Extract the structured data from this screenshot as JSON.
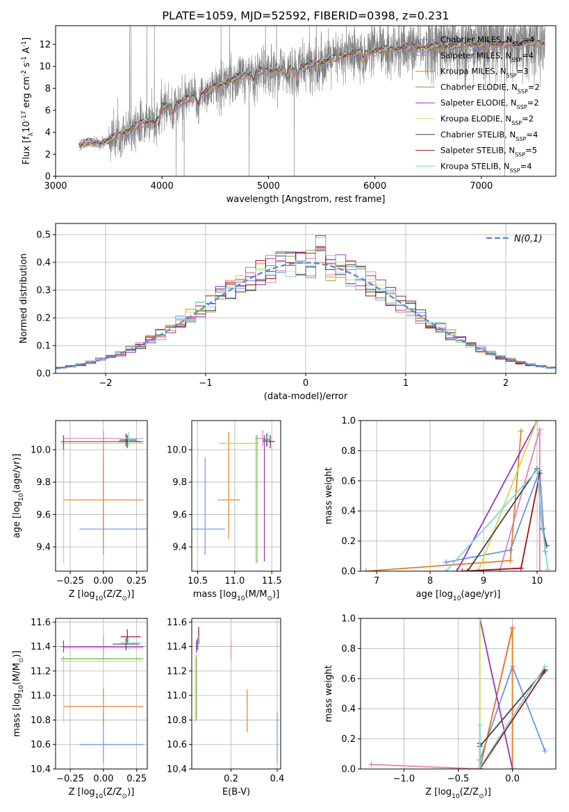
{
  "figure": {
    "title": "PLATE=1059, MJD=52592, FIBERID=0398, z=0.231"
  },
  "models": [
    {
      "name": "Chabrier MILES",
      "nssp": "4",
      "color": "#6495ed"
    },
    {
      "name": "Salpeter MILES",
      "nssp": "4",
      "color": "#e680b3"
    },
    {
      "name": "Kroupa MILES",
      "nssp": "3",
      "color": "#e67e22"
    },
    {
      "name": "Chabrier ELODIE",
      "nssp": "2",
      "color": "#6aa84f"
    },
    {
      "name": "Salpeter ELODIE",
      "nssp": "2",
      "color": "#9b30c0"
    },
    {
      "name": "Kroupa ELODIE",
      "nssp": "2",
      "color": "#d4e157"
    },
    {
      "name": "Chabrier STELIB",
      "nssp": "4",
      "color": "#444444"
    },
    {
      "name": "Salpeter STELIB",
      "nssp": "5",
      "color": "#a50f15"
    },
    {
      "name": "Kroupa STELIB",
      "nssp": "4",
      "color": "#7fd4d9"
    }
  ],
  "chart_data": [
    {
      "id": "spectrum",
      "type": "line",
      "xlabel": "wavelength [Angstrom, rest frame]",
      "ylabel": "Flux [f$_\\lambda$10$^{-17}$ erg cm$^{-2}$ s$^{-1}$ A$^{-1}$]",
      "xlim": [
        3000,
        7700
      ],
      "ylim": [
        0,
        13.7
      ],
      "xticks": [
        3000,
        4000,
        5000,
        6000,
        7000
      ],
      "yticks": [
        0,
        2,
        4,
        6,
        8,
        10,
        12
      ],
      "legend": "upper-right",
      "data_color": "#808080",
      "continuum": {
        "x": [
          3220,
          3300,
          3400,
          3500,
          3600,
          3700,
          3800,
          3900,
          4000,
          4200,
          4400,
          4600,
          4800,
          5000,
          5200,
          5400,
          5600,
          5800,
          6000,
          6200,
          6400,
          6600,
          6800,
          7000,
          7200,
          7400
        ],
        "y": [
          2.8,
          3.1,
          3.0,
          3.2,
          3.8,
          4.2,
          4.8,
          5.0,
          6.2,
          6.8,
          7.6,
          8.5,
          9.3,
          9.6,
          9.7,
          10.1,
          10.6,
          11.2,
          11.4,
          11.6,
          11.7,
          11.8,
          11.9,
          12.0,
          12.0,
          12.1
        ]
      }
    },
    {
      "id": "residuals",
      "type": "step",
      "xlabel": "(data-model)/error",
      "ylabel": "Normed distribution",
      "xlim": [
        -2.5,
        2.5
      ],
      "ylim": [
        0,
        0.54
      ],
      "xticks": [
        -2,
        -1,
        0,
        1,
        2
      ],
      "yticks": [
        0.0,
        0.1,
        0.2,
        0.3,
        0.4,
        0.5
      ],
      "legend_label": "$\\mathcal{N}(0,1)$",
      "legend": "upper-right",
      "gauss_color": "#5b8bd9"
    },
    {
      "id": "age_vs_Z",
      "type": "errorbar",
      "xlabel": "Z [log$_{10}$(Z/Z$_\\odot$)]",
      "ylabel": "age  [log$_{10}$(age/yr)]",
      "xlim": [
        -0.36,
        0.33
      ],
      "ylim": [
        9.25,
        10.18
      ],
      "xticks": [
        -0.25,
        0.0,
        0.25
      ],
      "yticks": [
        9.4,
        9.6,
        9.8,
        10.0
      ],
      "points": [
        {
          "m": 0,
          "x": 0.0,
          "y": 9.51,
          "xerr": [
            0.18,
            0.37
          ],
          "yerr": [
            0.16,
            0.44
          ]
        },
        {
          "m": 2,
          "x": 0.0,
          "y": 9.69,
          "xerr": [
            0.3,
            0.3
          ],
          "yerr": [
            0.24,
            0.42
          ]
        },
        {
          "m": 1,
          "x": 0.0,
          "y": 10.07,
          "xerr": [
            0.3,
            0.3
          ],
          "yerr": [
            0.05,
            0.05
          ]
        },
        {
          "m": 3,
          "x": -0.3,
          "y": 10.04,
          "xerr": [
            0.02,
            0.6
          ],
          "yerr": [
            0.74,
            0.05
          ]
        },
        {
          "m": 5,
          "x": -0.3,
          "y": 10.04,
          "xerr": [
            0.02,
            0.6
          ],
          "yerr": [
            0.74,
            0.05
          ]
        },
        {
          "m": 4,
          "x": -0.3,
          "y": 10.05,
          "xerr": [
            0.02,
            0.6
          ],
          "yerr": [
            0.05,
            0.04
          ]
        },
        {
          "m": 6,
          "x": 0.17,
          "y": 10.06,
          "xerr": [
            0.05,
            0.08
          ],
          "yerr": [
            0.04,
            0.04
          ]
        },
        {
          "m": 7,
          "x": 0.18,
          "y": 10.05,
          "xerr": [
            0.07,
            0.1
          ],
          "yerr": [
            0.04,
            0.04
          ]
        },
        {
          "m": 8,
          "x": 0.19,
          "y": 10.07,
          "xerr": [
            0.06,
            0.1
          ],
          "yerr": [
            0.05,
            0.04
          ]
        }
      ]
    },
    {
      "id": "age_vs_mass",
      "type": "errorbar",
      "xlabel": "mass [log$_{10}$(M/M$_\\odot$)]",
      "ylabel": "",
      "xlim": [
        10.42,
        11.62
      ],
      "ylim": [
        9.25,
        10.18
      ],
      "xticks": [
        10.5,
        11.0,
        11.5
      ],
      "yticks": [
        9.4,
        9.6,
        9.8,
        10.0
      ],
      "points": [
        {
          "m": 0,
          "x": 10.6,
          "y": 9.51,
          "xerr": [
            0.18,
            0.27
          ],
          "yerr": [
            0.16,
            0.44
          ]
        },
        {
          "m": 2,
          "x": 10.92,
          "y": 9.69,
          "xerr": [
            0.15,
            0.15
          ],
          "yerr": [
            0.24,
            0.42
          ]
        },
        {
          "m": 1,
          "x": 11.38,
          "y": 10.07,
          "xerr": [
            0.1,
            0.1
          ],
          "yerr": [
            0.05,
            0.05
          ]
        },
        {
          "m": 3,
          "x": 11.3,
          "y": 10.04,
          "xerr": [
            0.5,
            0.02
          ],
          "yerr": [
            0.74,
            0.05
          ]
        },
        {
          "m": 5,
          "x": 11.28,
          "y": 10.04,
          "xerr": [
            0.5,
            0.02
          ],
          "yerr": [
            0.74,
            0.05
          ]
        },
        {
          "m": 4,
          "x": 11.4,
          "y": 10.05,
          "xerr": [
            0.02,
            0.02
          ],
          "yerr": [
            0.74,
            0.04
          ]
        },
        {
          "m": 6,
          "x": 11.43,
          "y": 10.06,
          "xerr": [
            0.05,
            0.05
          ],
          "yerr": [
            0.04,
            0.04
          ]
        },
        {
          "m": 7,
          "x": 11.48,
          "y": 10.05,
          "xerr": [
            0.05,
            0.06
          ],
          "yerr": [
            0.04,
            0.04
          ]
        },
        {
          "m": 8,
          "x": 11.45,
          "y": 10.07,
          "xerr": [
            0.04,
            0.05
          ],
          "yerr": [
            0.05,
            0.04
          ]
        }
      ]
    },
    {
      "id": "weight_vs_age",
      "type": "line",
      "xlabel": "age  [log$_{10}$(age/yr)]",
      "ylabel": "mass weight",
      "xlim": [
        6.7,
        10.35
      ],
      "ylim": [
        0,
        1.0
      ],
      "xticks": [
        7,
        8,
        9,
        10
      ],
      "yticks": [
        0.0,
        0.2,
        0.4,
        0.6,
        0.8,
        1.0
      ],
      "series": [
        {
          "m": 0,
          "x": [
            8.3,
            9.5,
            10.05,
            10.15
          ],
          "y": [
            0.06,
            0.14,
            0.67,
            0.13
          ]
        },
        {
          "m": 1,
          "x": [
            9.3,
            10.05,
            10.05
          ],
          "y": [
            0.0,
            0.94,
            0.0
          ]
        },
        {
          "m": 2,
          "x": [
            6.8,
            9.5,
            9.7
          ],
          "y": [
            0.0,
            0.07,
            0.93
          ]
        },
        {
          "m": 3,
          "x": [
            8.9,
            10.0
          ],
          "y": [
            0.0,
            1.0
          ]
        },
        {
          "m": 4,
          "x": [
            8.5,
            10.0
          ],
          "y": [
            0.0,
            1.0
          ]
        },
        {
          "m": 5,
          "x": [
            8.9,
            10.0
          ],
          "y": [
            0.0,
            1.0
          ]
        },
        {
          "m": 6,
          "x": [
            8.7,
            10.0,
            10.1,
            10.18
          ],
          "y": [
            0.0,
            0.68,
            0.28,
            0.17
          ]
        },
        {
          "m": 7,
          "x": [
            8.6,
            9.7,
            10.05
          ],
          "y": [
            0.0,
            0.02,
            0.65
          ]
        },
        {
          "m": 8,
          "x": [
            8.3,
            10.0,
            10.1,
            10.2
          ],
          "y": [
            0.0,
            0.67,
            0.29,
            0.01
          ]
        }
      ]
    },
    {
      "id": "mass_vs_Z",
      "type": "errorbar",
      "xlabel": "Z [log$_{10}$(Z/Z$_\\odot$)]",
      "ylabel": "mass [log$_{10}$(M/M$_\\odot$)]",
      "xlim": [
        -0.36,
        0.33
      ],
      "ylim": [
        10.4,
        11.63
      ],
      "xticks": [
        -0.25,
        0.0,
        0.25
      ],
      "yticks": [
        10.4,
        10.6,
        10.8,
        11.0,
        11.2,
        11.4,
        11.6
      ],
      "points": [
        {
          "m": 0,
          "x": 0.0,
          "y": 10.6,
          "xerr": [
            0.18,
            0.3
          ],
          "yerr": [
            0.15,
            0.26
          ]
        },
        {
          "m": 2,
          "x": 0.0,
          "y": 10.91,
          "xerr": [
            0.3,
            0.3
          ],
          "yerr": [
            0.15,
            0.15
          ]
        },
        {
          "m": 1,
          "x": 0.0,
          "y": 11.39,
          "xerr": [
            0.3,
            0.3
          ],
          "yerr": [
            0.1,
            0.1
          ]
        },
        {
          "m": 3,
          "x": -0.3,
          "y": 11.3,
          "xerr": [
            0.02,
            0.6
          ],
          "yerr": [
            0.5,
            0.02
          ]
        },
        {
          "m": 5,
          "x": -0.3,
          "y": 11.28,
          "xerr": [
            0.02,
            0.6
          ],
          "yerr": [
            0.5,
            0.02
          ]
        },
        {
          "m": 4,
          "x": -0.3,
          "y": 11.4,
          "xerr": [
            0.02,
            0.6
          ],
          "yerr": [
            0.05,
            0.05
          ]
        },
        {
          "m": 6,
          "x": 0.17,
          "y": 11.42,
          "xerr": [
            0.1,
            0.1
          ],
          "yerr": [
            0.05,
            0.05
          ]
        },
        {
          "m": 7,
          "x": 0.18,
          "y": 11.48,
          "xerr": [
            0.05,
            0.1
          ],
          "yerr": [
            0.06,
            0.06
          ]
        },
        {
          "m": 8,
          "x": 0.19,
          "y": 11.43,
          "xerr": [
            0.06,
            0.1
          ],
          "yerr": [
            0.05,
            0.05
          ]
        }
      ]
    },
    {
      "id": "mass_vs_ebv",
      "type": "errorbar",
      "xlabel": "E(B-V)",
      "ylabel": "",
      "xlim": [
        0.03,
        0.415
      ],
      "ylim": [
        10.4,
        11.63
      ],
      "xticks": [
        0.2,
        0.4
      ],
      "yticks": [
        10.4,
        10.6,
        10.8,
        11.0,
        11.2,
        11.4,
        11.6
      ],
      "points": [
        {
          "m": 0,
          "x": 0.4,
          "y": 10.6,
          "xerr": [
            0.0,
            0.0
          ],
          "yerr": [
            0.15,
            0.26
          ]
        },
        {
          "m": 2,
          "x": 0.27,
          "y": 10.91,
          "xerr": [
            0.0,
            0.0
          ],
          "yerr": [
            0.21,
            0.14
          ]
        },
        {
          "m": 1,
          "x": 0.2,
          "y": 11.39,
          "xerr": [
            0.0,
            0.0
          ],
          "yerr": [
            0.1,
            0.06
          ]
        },
        {
          "m": 3,
          "x": 0.05,
          "y": 11.3,
          "xerr": [
            0.0,
            0.0
          ],
          "yerr": [
            0.5,
            0.03
          ]
        },
        {
          "m": 5,
          "x": 0.045,
          "y": 11.28,
          "xerr": [
            0.0,
            0.0
          ],
          "yerr": [
            0.5,
            0.03
          ]
        },
        {
          "m": 4,
          "x": 0.05,
          "y": 11.4,
          "xerr": [
            0.0,
            0.0
          ],
          "yerr": [
            0.05,
            0.05
          ]
        },
        {
          "m": 6,
          "x": 0.055,
          "y": 11.42,
          "xerr": [
            0.0,
            0.0
          ],
          "yerr": [
            0.05,
            0.05
          ]
        },
        {
          "m": 7,
          "x": 0.06,
          "y": 11.48,
          "xerr": [
            0.0,
            0.0
          ],
          "yerr": [
            0.06,
            0.08
          ]
        },
        {
          "m": 8,
          "x": 0.058,
          "y": 11.43,
          "xerr": [
            0.0,
            0.0
          ],
          "yerr": [
            0.05,
            0.05
          ]
        }
      ]
    },
    {
      "id": "weight_vs_Z",
      "type": "line",
      "xlabel": "Z [log$_{10}$(Z/Z$_\\odot$)]",
      "ylabel": "mass weight",
      "xlim": [
        -1.4,
        0.4
      ],
      "ylim": [
        0,
        1.0
      ],
      "xticks": [
        -1.0,
        -0.5,
        0.0
      ],
      "yticks": [
        0.0,
        0.2,
        0.4,
        0.6,
        0.8,
        1.0
      ],
      "series": [
        {
          "m": 0,
          "x": [
            -0.3,
            0.0,
            0.3
          ],
          "y": [
            0.06,
            0.68,
            0.12
          ]
        },
        {
          "m": 1,
          "x": [
            -1.3,
            -0.3,
            0.0,
            0.0
          ],
          "y": [
            0.03,
            0.0,
            0.94,
            0.0
          ]
        },
        {
          "m": 2,
          "x": [
            -0.3,
            0.0,
            0.0
          ],
          "y": [
            0.0,
            0.93,
            0.0
          ]
        },
        {
          "m": 3,
          "x": [
            -0.3,
            -0.3
          ],
          "y": [
            0.0,
            1.0
          ]
        },
        {
          "m": 4,
          "x": [
            -0.3,
            0.0
          ],
          "y": [
            1.0,
            0.0
          ]
        },
        {
          "m": 5,
          "x": [
            -0.3,
            -0.3
          ],
          "y": [
            0.0,
            1.0
          ]
        },
        {
          "m": 6,
          "x": [
            -0.3,
            -0.3,
            -0.3,
            0.3
          ],
          "y": [
            0.17,
            0.0,
            0.15,
            0.66
          ]
        },
        {
          "m": 7,
          "x": [
            -0.3,
            0.3
          ],
          "y": [
            0.0,
            0.65
          ]
        },
        {
          "m": 8,
          "x": [
            -0.3,
            -0.3,
            0.3
          ],
          "y": [
            0.29,
            0.01,
            0.68
          ]
        }
      ]
    }
  ]
}
